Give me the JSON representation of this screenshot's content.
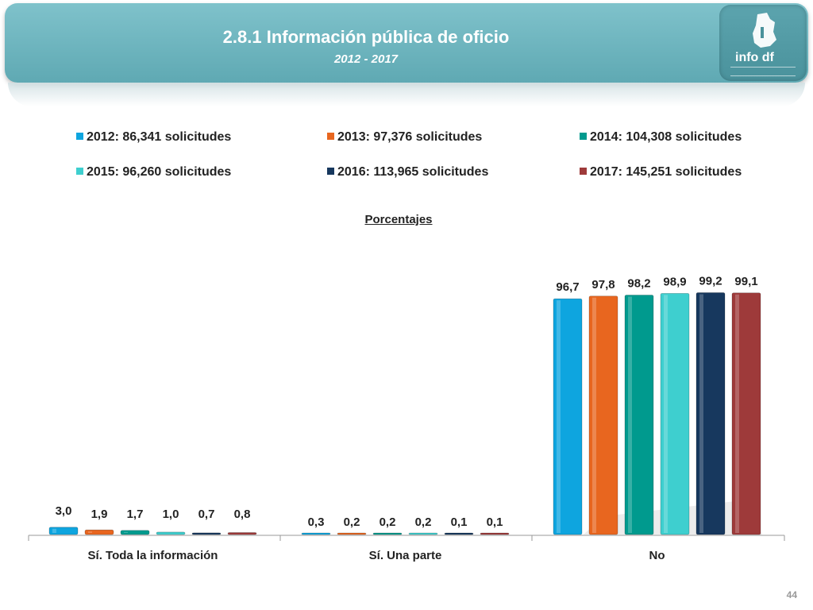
{
  "header": {
    "title": "2.8.1 Información pública de oficio",
    "subtitle": "2012 - 2017",
    "logo_text": "info df"
  },
  "chart_data": {
    "type": "bar",
    "title": "Porcentajes",
    "categories": [
      "Sí. Toda la información",
      "Sí. Una parte",
      "No"
    ],
    "series": [
      {
        "name": "2012: 86,341 solicitudes",
        "color": "#0ea5df",
        "values": [
          3.0,
          0.3,
          96.7
        ],
        "labels": [
          "3,0",
          "0,3",
          "96,7"
        ]
      },
      {
        "name": "2013: 97,376 solicitudes",
        "color": "#e8661f",
        "values": [
          1.9,
          0.2,
          97.8
        ],
        "labels": [
          "1,9",
          "0,2",
          "97,8"
        ]
      },
      {
        "name": "2014: 104,308 solicitudes",
        "color": "#009a8e",
        "values": [
          1.7,
          0.2,
          98.2
        ],
        "labels": [
          "1,7",
          "0,2",
          "98,2"
        ]
      },
      {
        "name": "2015: 96,260 solicitudes",
        "color": "#3ecfcf",
        "values": [
          1.0,
          0.2,
          98.9
        ],
        "labels": [
          "1,0",
          "0,2",
          "98,9"
        ]
      },
      {
        "name": "2016: 113,965 solicitudes",
        "color": "#17385e",
        "values": [
          0.7,
          0.1,
          99.2
        ],
        "labels": [
          "0,7",
          "0,1",
          "99,2"
        ]
      },
      {
        "name": "2017: 145,251 solicitudes",
        "color": "#9e3a3a",
        "values": [
          0.8,
          0.1,
          99.1
        ],
        "labels": [
          "0,8",
          "0,1",
          "99,1"
        ]
      }
    ],
    "ylim": [
      0,
      100
    ],
    "grid": false,
    "legend_position": "top"
  },
  "footer": {
    "page_number": "44"
  }
}
